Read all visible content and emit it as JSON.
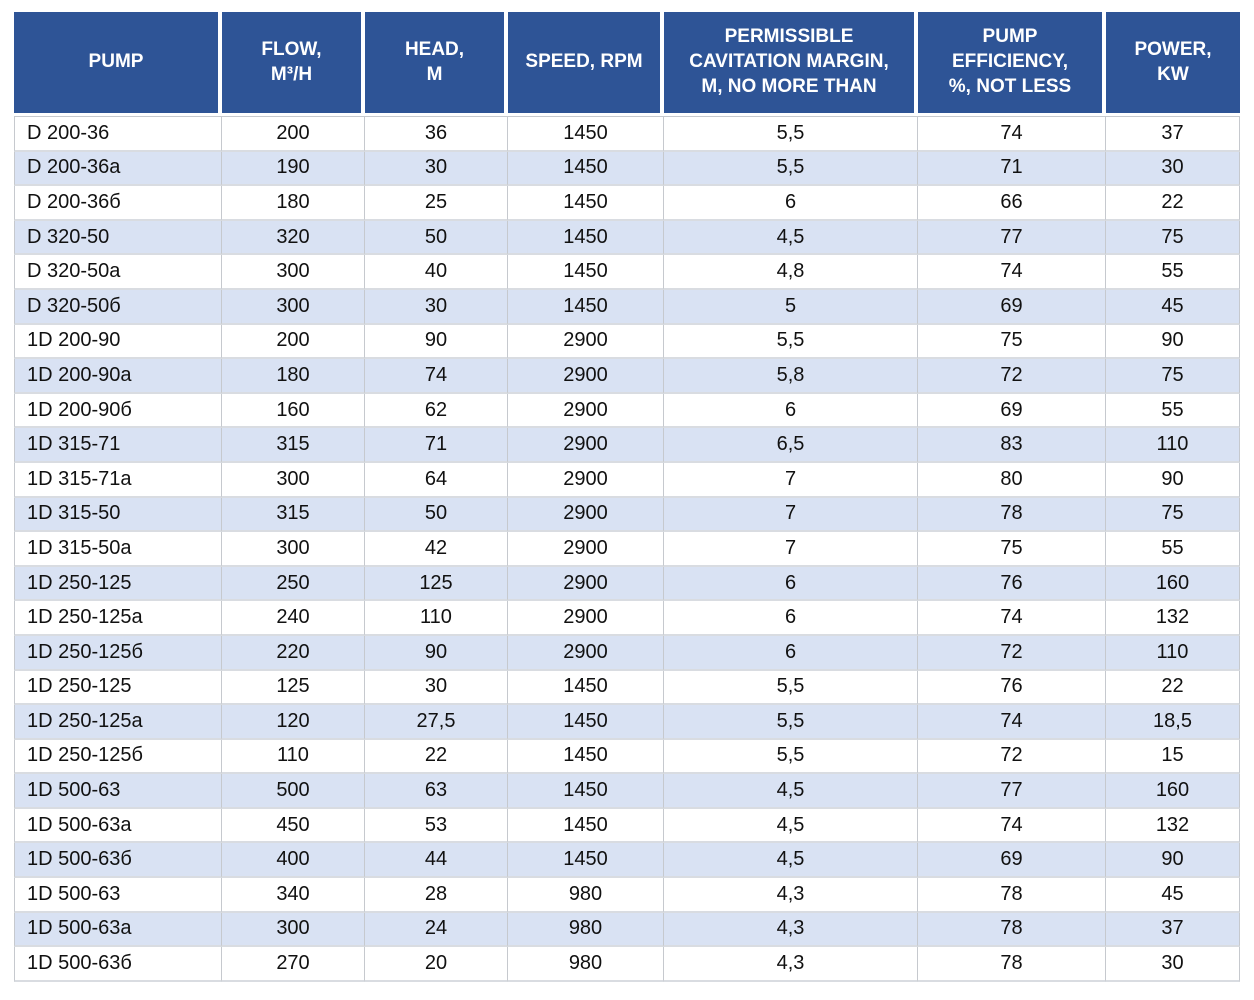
{
  "colors": {
    "header_bg": "#2E5496",
    "header_text": "#FFFFFF",
    "band_row_bg": "#D9E2F3",
    "plain_row_bg": "#FFFFFF",
    "grid_line": "#C6C9CE",
    "body_text": "#111111"
  },
  "chart_data": {
    "type": "table",
    "columns": [
      {
        "key": "pump",
        "label": "PUMP"
      },
      {
        "key": "flow",
        "label": "FLOW,\nM³/H"
      },
      {
        "key": "head",
        "label": "HEAD,\nM"
      },
      {
        "key": "speed",
        "label": "SPEED, RPM"
      },
      {
        "key": "cavitation",
        "label": "PERMISSIBLE\nCAVITATION MARGIN,\nM, NO MORE THAN"
      },
      {
        "key": "efficiency",
        "label": "PUMP\nEFFICIENCY,\n%, NOT LESS"
      },
      {
        "key": "power",
        "label": "POWER,\nKW"
      }
    ],
    "rows": [
      [
        "D 200-36",
        "200",
        "36",
        "1450",
        "5,5",
        "74",
        "37"
      ],
      [
        "D 200-36a",
        "190",
        "30",
        "1450",
        "5,5",
        "71",
        "30"
      ],
      [
        "D 200-36б",
        "180",
        "25",
        "1450",
        "6",
        "66",
        "22"
      ],
      [
        "D 320-50",
        "320",
        "50",
        "1450",
        "4,5",
        "77",
        "75"
      ],
      [
        "D 320-50a",
        "300",
        "40",
        "1450",
        "4,8",
        "74",
        "55"
      ],
      [
        "D 320-50б",
        "300",
        "30",
        "1450",
        "5",
        "69",
        "45"
      ],
      [
        "1D 200-90",
        "200",
        "90",
        "2900",
        "5,5",
        "75",
        "90"
      ],
      [
        "1D 200-90a",
        "180",
        "74",
        "2900",
        "5,8",
        "72",
        "75"
      ],
      [
        "1D 200-90б",
        "160",
        "62",
        "2900",
        "6",
        "69",
        "55"
      ],
      [
        "1D 315-71",
        "315",
        "71",
        "2900",
        "6,5",
        "83",
        "110"
      ],
      [
        "1D 315-71a",
        "300",
        "64",
        "2900",
        "7",
        "80",
        "90"
      ],
      [
        "1D 315-50",
        "315",
        "50",
        "2900",
        "7",
        "78",
        "75"
      ],
      [
        "1D 315-50a",
        "300",
        "42",
        "2900",
        "7",
        "75",
        "55"
      ],
      [
        "1D 250-125",
        "250",
        "125",
        "2900",
        "6",
        "76",
        "160"
      ],
      [
        "1D 250-125a",
        "240",
        "110",
        "2900",
        "6",
        "74",
        "132"
      ],
      [
        "1D 250-125б",
        "220",
        "90",
        "2900",
        "6",
        "72",
        "110"
      ],
      [
        "1D 250-125",
        "125",
        "30",
        "1450",
        "5,5",
        "76",
        "22"
      ],
      [
        "1D 250-125a",
        "120",
        "27,5",
        "1450",
        "5,5",
        "74",
        "18,5"
      ],
      [
        "1D 250-125б",
        "110",
        "22",
        "1450",
        "5,5",
        "72",
        "15"
      ],
      [
        "1D 500-63",
        "500",
        "63",
        "1450",
        "4,5",
        "77",
        "160"
      ],
      [
        "1D 500-63a",
        "450",
        "53",
        "1450",
        "4,5",
        "74",
        "132"
      ],
      [
        "1D 500-63б",
        "400",
        "44",
        "1450",
        "4,5",
        "69",
        "90"
      ],
      [
        "1D 500-63",
        "340",
        "28",
        "980",
        "4,3",
        "78",
        "45"
      ],
      [
        "1D 500-63a",
        "300",
        "24",
        "980",
        "4,3",
        "78",
        "37"
      ],
      [
        "1D 500-63б",
        "270",
        "20",
        "980",
        "4,3",
        "78",
        "30"
      ]
    ]
  }
}
